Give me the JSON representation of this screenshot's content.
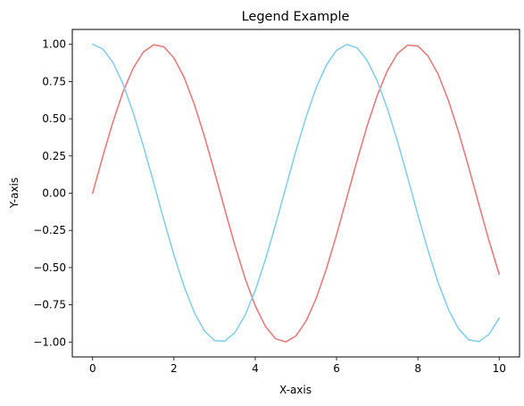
{
  "chart_data": {
    "type": "line",
    "title": "Legend Example",
    "xlabel": "X-axis",
    "ylabel": "Y-axis",
    "xlim": [
      -0.5,
      10.5
    ],
    "ylim": [
      -1.1,
      1.1
    ],
    "xticks": [
      0,
      2,
      4,
      6,
      8,
      10
    ],
    "xtick_labels": [
      "0",
      "2",
      "4",
      "6",
      "8",
      "10"
    ],
    "yticks": [
      -1.0,
      -0.75,
      -0.5,
      -0.25,
      0.0,
      0.25,
      0.5,
      0.75,
      1.0
    ],
    "ytick_labels": [
      "−1.00",
      "−0.75",
      "−0.50",
      "−0.25",
      "0.00",
      "0.25",
      "0.50",
      "0.75",
      "1.00"
    ],
    "grid": false,
    "x": [
      0.0,
      0.25,
      0.5,
      0.75,
      1.0,
      1.25,
      1.5,
      1.75,
      2.0,
      2.25,
      2.5,
      2.75,
      3.0,
      3.25,
      3.5,
      3.75,
      4.0,
      4.25,
      4.5,
      4.75,
      5.0,
      5.25,
      5.5,
      5.75,
      6.0,
      6.25,
      6.5,
      6.75,
      7.0,
      7.25,
      7.5,
      7.75,
      8.0,
      8.25,
      8.5,
      8.75,
      9.0,
      9.25,
      9.5,
      9.75,
      10.0
    ],
    "series": [
      {
        "color": "#e57c7c",
        "values": [
          0.0,
          0.247,
          0.479,
          0.682,
          0.841,
          0.949,
          0.997,
          0.984,
          0.909,
          0.778,
          0.598,
          0.382,
          0.141,
          -0.108,
          -0.351,
          -0.572,
          -0.757,
          -0.895,
          -0.978,
          -0.999,
          -0.959,
          -0.859,
          -0.706,
          -0.508,
          -0.279,
          -0.033,
          0.215,
          0.45,
          0.657,
          0.823,
          0.938,
          0.995,
          0.989,
          0.921,
          0.798,
          0.624,
          0.412,
          0.174,
          -0.075,
          -0.32,
          -0.544
        ]
      },
      {
        "color": "#87ceeb",
        "values": [
          1.0,
          0.969,
          0.878,
          0.732,
          0.54,
          0.315,
          0.071,
          -0.178,
          -0.416,
          -0.628,
          -0.801,
          -0.925,
          -0.99,
          -0.994,
          -0.936,
          -0.82,
          -0.654,
          -0.446,
          -0.211,
          0.037,
          0.284,
          0.512,
          0.709,
          0.861,
          0.96,
          0.999,
          0.977,
          0.893,
          0.754,
          0.568,
          0.347,
          0.105,
          -0.146,
          -0.385,
          -0.602,
          -0.78,
          -0.911,
          -0.985,
          -0.997,
          -0.948,
          -0.839
        ]
      }
    ]
  }
}
